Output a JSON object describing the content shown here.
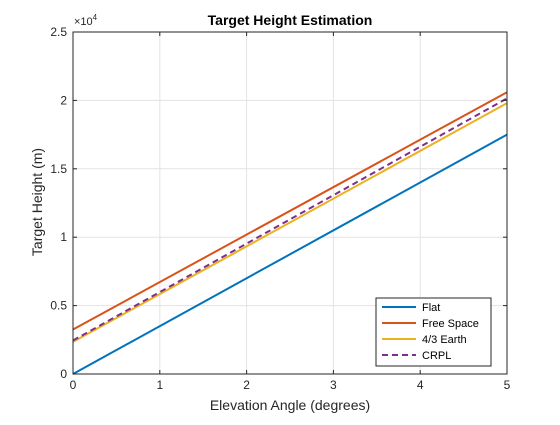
{
  "chart_data": {
    "type": "line",
    "title": "Target Height Estimation",
    "xlabel": "Elevation Angle (degrees)",
    "ylabel": "Target Height (m)",
    "y_exponent": {
      "base": "×10",
      "power": "4"
    },
    "xlim": [
      0,
      5
    ],
    "ylim": [
      0,
      25000
    ],
    "xticks": [
      0,
      1,
      2,
      3,
      4,
      5
    ],
    "xtick_labels": [
      "0",
      "1",
      "2",
      "3",
      "4",
      "5"
    ],
    "yticks": [
      0,
      5000,
      10000,
      15000,
      20000,
      25000
    ],
    "ytick_labels": [
      "0",
      "0.5",
      "1",
      "1.5",
      "2",
      "2.5"
    ],
    "grid": true,
    "legend_position": "bottom-right",
    "series": [
      {
        "name": "Flat",
        "color": "#0072BD",
        "style": "solid",
        "x": [
          0,
          5
        ],
        "y": [
          0,
          17500
        ]
      },
      {
        "name": "Free Space",
        "color": "#D95319",
        "style": "solid",
        "x": [
          0,
          5
        ],
        "y": [
          3250,
          20600
        ]
      },
      {
        "name": "4/3 Earth",
        "color": "#EDB120",
        "style": "solid",
        "x": [
          0,
          5
        ],
        "y": [
          2350,
          19800
        ]
      },
      {
        "name": "CRPL",
        "color": "#7E2F8E",
        "style": "dashed",
        "x": [
          0,
          5
        ],
        "y": [
          2450,
          20150
        ]
      }
    ]
  }
}
